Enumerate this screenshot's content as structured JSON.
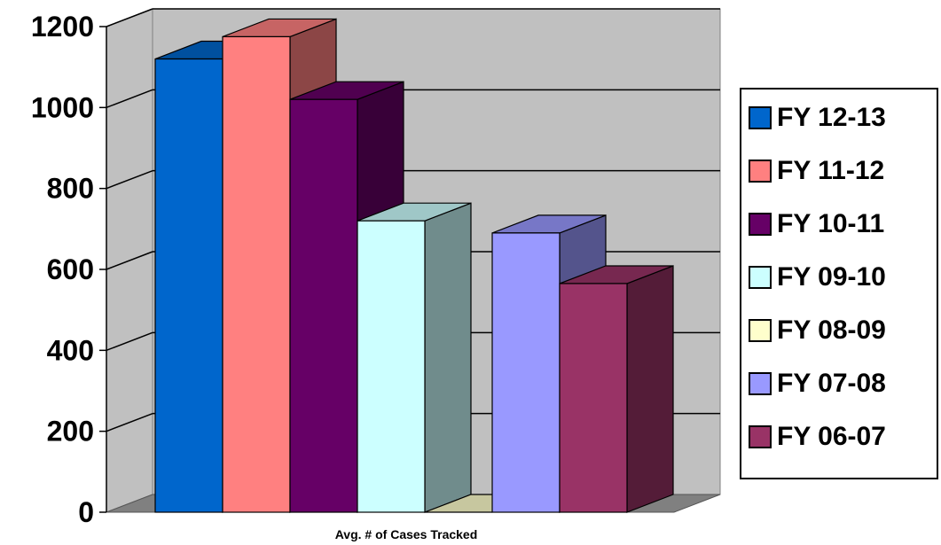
{
  "chart_data": {
    "type": "bar",
    "style": "3d",
    "xlabel": "Avg. # of Cases Tracked",
    "categories": [
      "Avg. # of Cases Tracked"
    ],
    "ylim": [
      0,
      1200
    ],
    "yticks": [
      0,
      200,
      400,
      600,
      800,
      1000,
      1200
    ],
    "grid": true,
    "legend_position": "right",
    "series": [
      {
        "name": "FY 12-13",
        "values": [
          1120
        ],
        "color": "#0066cc"
      },
      {
        "name": "FY 11-12",
        "values": [
          1175
        ],
        "color": "#ff8080"
      },
      {
        "name": "FY 10-11",
        "values": [
          1020
        ],
        "color": "#660066"
      },
      {
        "name": "FY 09-10",
        "values": [
          720
        ],
        "color": "#ccffff"
      },
      {
        "name": "FY 08-09",
        "values": [
          0
        ],
        "color": "#ffffcc"
      },
      {
        "name": "FY 07-08",
        "values": [
          690
        ],
        "color": "#9999ff"
      },
      {
        "name": "FY 06-07",
        "values": [
          565
        ],
        "color": "#993366"
      }
    ]
  }
}
